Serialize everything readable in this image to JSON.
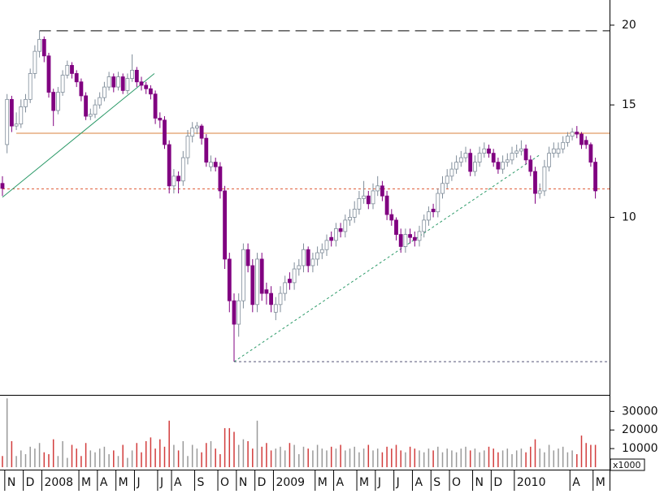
{
  "chart_data": {
    "type": "candlestick",
    "categories": [
      null,
      "N",
      null,
      null,
      null,
      "D",
      null,
      null,
      null,
      "2008",
      null,
      null,
      null,
      null,
      null,
      null,
      null,
      "M",
      null,
      null,
      null,
      "A",
      null,
      null,
      null,
      "M",
      null,
      null,
      null,
      "J",
      null,
      null,
      null,
      null,
      "J",
      null,
      null,
      "A",
      null,
      null,
      null,
      null,
      "S",
      null,
      null,
      null,
      null,
      "O",
      null,
      null,
      null,
      "N",
      null,
      null,
      null,
      "D",
      null,
      null,
      null,
      "2009",
      null,
      null,
      null,
      null,
      null,
      null,
      null,
      null,
      "M",
      null,
      null,
      null,
      "A",
      null,
      null,
      null,
      null,
      "M",
      null,
      null,
      null,
      "J",
      null,
      null,
      null,
      "J",
      null,
      null,
      null,
      "A",
      null,
      null,
      null,
      "S",
      null,
      null,
      null,
      "O",
      null,
      null,
      null,
      null,
      "N",
      null,
      null,
      null,
      "D",
      null,
      null,
      null,
      null,
      "2010",
      null,
      null,
      null,
      null,
      null,
      null,
      null,
      null,
      null,
      null,
      null,
      "A",
      null,
      null,
      null,
      null,
      "M"
    ],
    "open": [
      11.3,
      13.0,
      15.3,
      13.9,
      14.0,
      14.9,
      15.3,
      16.8,
      18.2,
      19.0,
      17.9,
      15.7,
      14.7,
      15.7,
      16.7,
      17.3,
      16.8,
      16.3,
      15.5,
      14.4,
      14.5,
      15.0,
      15.4,
      16.0,
      16.6,
      16.0,
      16.6,
      15.8,
      16.5,
      17.0,
      16.3,
      16.1,
      15.9,
      15.6,
      14.3,
      14.2,
      13.0,
      11.2,
      11.6,
      11.4,
      12.4,
      13.4,
      13.8,
      13.9,
      13.3,
      12.0,
      12.2,
      12.0,
      11.0,
      8.6,
      7.4,
      6.8,
      7.4,
      8.9,
      8.4,
      7.3,
      8.6,
      7.7,
      7.6,
      7.1,
      7.3,
      7.6,
      8.0,
      7.9,
      8.3,
      8.4,
      8.9,
      8.4,
      8.6,
      8.8,
      8.9,
      9.3,
      9.2,
      9.6,
      9.5,
      9.9,
      10.0,
      10.3,
      10.7,
      10.8,
      10.5,
      11.0,
      11.2,
      10.8,
      10.1,
      9.9,
      9.4,
      9.0,
      9.4,
      9.3,
      9.2,
      9.5,
      9.9,
      10.3,
      10.2,
      10.9,
      11.3,
      11.6,
      11.9,
      12.2,
      12.4,
      12.6,
      11.8,
      12.2,
      12.6,
      12.8,
      12.6,
      12.2,
      11.9,
      12.2,
      12.3,
      12.6,
      12.7,
      12.8,
      12.3,
      11.8,
      10.9,
      11.0,
      12.0,
      12.6,
      12.6,
      12.8,
      13.1,
      13.4,
      13.6,
      13.5,
      13.2,
      13.0,
      12.2
    ],
    "high": [
      11.6,
      15.6,
      15.5,
      14.6,
      15.3,
      15.6,
      17.1,
      18.6,
      19.6,
      19.2,
      18.1,
      15.9,
      16.0,
      17.0,
      17.6,
      17.5,
      17.0,
      16.5,
      15.7,
      14.8,
      15.3,
      15.7,
      16.3,
      16.9,
      16.8,
      16.9,
      16.8,
      16.8,
      18.0,
      17.2,
      16.6,
      16.3,
      16.1,
      15.8,
      14.6,
      14.4,
      13.2,
      11.9,
      11.8,
      12.7,
      13.7,
      14.1,
      14.1,
      14.0,
      13.5,
      12.5,
      12.4,
      12.2,
      11.2,
      8.8,
      7.6,
      7.6,
      9.1,
      9.1,
      8.6,
      8.8,
      8.8,
      7.9,
      7.8,
      7.5,
      7.8,
      8.1,
      8.2,
      8.5,
      8.6,
      9.1,
      9.0,
      8.8,
      9.0,
      9.1,
      9.4,
      9.5,
      9.8,
      9.8,
      10.1,
      10.3,
      10.6,
      11.0,
      11.4,
      11.0,
      11.3,
      11.6,
      11.4,
      11.0,
      10.3,
      10.0,
      9.6,
      9.6,
      9.6,
      9.5,
      9.7,
      10.1,
      10.4,
      10.5,
      11.1,
      11.6,
      11.9,
      12.2,
      12.5,
      12.7,
      12.9,
      12.8,
      12.5,
      12.9,
      13.1,
      13.0,
      12.8,
      12.4,
      12.5,
      12.6,
      12.9,
      13.0,
      13.2,
      13.0,
      12.5,
      12.0,
      11.3,
      12.3,
      12.9,
      13.1,
      13.1,
      13.4,
      13.6,
      13.8,
      13.9,
      13.6,
      13.4,
      13.1,
      12.4
    ],
    "low": [
      10.8,
      12.6,
      13.6,
      13.7,
      13.8,
      14.6,
      15.1,
      16.5,
      17.8,
      17.5,
      15.4,
      13.9,
      14.5,
      15.5,
      16.5,
      16.5,
      16.0,
      15.2,
      14.2,
      14.2,
      14.3,
      14.8,
      15.2,
      15.8,
      15.7,
      15.8,
      15.6,
      15.6,
      16.3,
      16.0,
      15.8,
      15.6,
      15.3,
      14.0,
      13.8,
      12.8,
      10.9,
      10.9,
      10.9,
      11.2,
      12.1,
      13.1,
      13.5,
      13.0,
      12.0,
      11.8,
      11.8,
      10.7,
      8.3,
      7.1,
      5.94,
      6.5,
      7.2,
      8.2,
      7.1,
      7.1,
      7.4,
      7.3,
      7.1,
      6.9,
      7.1,
      7.4,
      7.7,
      7.7,
      8.1,
      8.2,
      8.2,
      8.2,
      8.4,
      8.6,
      8.7,
      9.0,
      9.0,
      9.3,
      9.3,
      9.7,
      9.8,
      10.1,
      10.5,
      10.3,
      10.3,
      10.8,
      10.6,
      9.9,
      9.7,
      9.2,
      8.8,
      8.8,
      9.1,
      9.0,
      9.0,
      9.3,
      9.7,
      10.0,
      10.0,
      10.7,
      11.1,
      11.4,
      11.7,
      12.0,
      12.2,
      11.6,
      11.6,
      12.0,
      12.4,
      12.4,
      12.0,
      11.7,
      11.7,
      12.0,
      12.1,
      12.4,
      12.5,
      12.1,
      11.6,
      10.5,
      10.7,
      10.8,
      11.8,
      12.4,
      12.4,
      12.6,
      12.9,
      13.2,
      13.3,
      12.8,
      12.8,
      12.0,
      10.7
    ],
    "close": [
      11.1,
      15.3,
      13.9,
      14.0,
      14.9,
      15.3,
      16.8,
      18.2,
      19.0,
      17.9,
      15.7,
      14.7,
      15.7,
      16.7,
      17.3,
      16.8,
      16.3,
      15.5,
      14.4,
      14.5,
      15.0,
      15.4,
      16.0,
      16.6,
      16.0,
      16.6,
      15.8,
      16.5,
      17.0,
      16.3,
      16.1,
      15.9,
      15.6,
      14.3,
      14.2,
      13.0,
      11.2,
      11.6,
      11.4,
      12.4,
      13.4,
      13.8,
      13.9,
      13.3,
      12.2,
      12.2,
      12.0,
      11.0,
      8.6,
      7.4,
      6.8,
      7.4,
      8.9,
      8.4,
      7.3,
      8.6,
      7.6,
      7.6,
      7.3,
      7.3,
      7.6,
      7.9,
      7.9,
      8.3,
      8.4,
      8.9,
      8.4,
      8.6,
      8.8,
      8.9,
      9.2,
      9.2,
      9.6,
      9.5,
      9.9,
      10.0,
      10.3,
      10.7,
      10.8,
      10.5,
      11.0,
      11.2,
      10.8,
      10.1,
      9.9,
      9.4,
      9.0,
      9.4,
      9.3,
      9.2,
      9.5,
      9.9,
      10.2,
      10.2,
      10.9,
      11.3,
      11.6,
      11.9,
      12.2,
      12.4,
      12.6,
      11.8,
      12.2,
      12.6,
      12.8,
      12.6,
      12.2,
      11.9,
      12.2,
      12.3,
      12.6,
      12.7,
      12.8,
      12.3,
      11.8,
      10.9,
      11.0,
      12.0,
      12.6,
      12.8,
      12.8,
      13.1,
      13.4,
      13.6,
      13.5,
      13.0,
      13.0,
      12.2,
      11.0
    ],
    "volume": [
      6000,
      37000,
      14000,
      6000,
      9000,
      7000,
      11000,
      10000,
      13000,
      8000,
      7000,
      15000,
      6000,
      14000,
      5000,
      12000,
      10000,
      6000,
      13000,
      9000,
      8000,
      10000,
      11000,
      7000,
      9000,
      6000,
      12000,
      5000,
      9000,
      13000,
      8000,
      14000,
      16000,
      10000,
      15000,
      11000,
      25000,
      12000,
      9000,
      14000,
      6000,
      12000,
      10000,
      8000,
      13000,
      14000,
      10000,
      7000,
      21000,
      21000,
      19000,
      12000,
      15000,
      14000,
      10000,
      25000,
      11000,
      13000,
      9000,
      10000,
      11000,
      9000,
      13000,
      12000,
      7000,
      11000,
      10000,
      9000,
      12000,
      10000,
      9000,
      11000,
      10000,
      12000,
      9000,
      10000,
      11000,
      8000,
      10000,
      12000,
      9000,
      10000,
      8000,
      11000,
      10000,
      12000,
      9000,
      8000,
      11000,
      10000,
      9000,
      8000,
      10000,
      9000,
      11000,
      8000,
      10000,
      9000,
      8000,
      10000,
      11000,
      9000,
      10000,
      8000,
      9000,
      11000,
      10000,
      8000,
      9000,
      10000,
      7000,
      9000,
      10000,
      8000,
      11000,
      15000,
      10000,
      8000,
      12000,
      9000,
      10000,
      11000,
      8000,
      9000,
      7000,
      17000,
      13000,
      12000,
      12000
    ],
    "log_scale": true,
    "ylim": [
      5.27,
      21.9
    ],
    "yticks": [
      10,
      15,
      20
    ],
    "volume_ylim": [
      0,
      38000
    ],
    "volume_yticks": [
      10000,
      20000,
      30000
    ],
    "volume_unit_label": "x1000",
    "up_color": "#ffffff",
    "down_color": "#800080",
    "outline_color": "#7f8c99",
    "volume_up_color": "#9a9a9a",
    "volume_down_color": "#d23c3c",
    "levels": [
      {
        "value": 19.6,
        "from": 8,
        "style": "dashed",
        "color": "#333333"
      },
      {
        "value": 13.54,
        "from": 3,
        "style": "solid",
        "color": "#d9803c"
      },
      {
        "value": 11.08,
        "from": 0,
        "style": "dotted",
        "color": "#e0603c"
      },
      {
        "value": 5.94,
        "from": 50,
        "style": "dotted",
        "color": "#555577"
      }
    ],
    "trendlines": [
      {
        "x": [
          0,
          32.8
        ],
        "y": [
          10.75,
          16.8
        ],
        "style": "solid",
        "color": "#2e9b6a"
      },
      {
        "x": [
          50,
          115.8
        ],
        "y": [
          5.94,
          12.5
        ],
        "style": "dotted",
        "color": "#2e9b6a"
      }
    ]
  }
}
